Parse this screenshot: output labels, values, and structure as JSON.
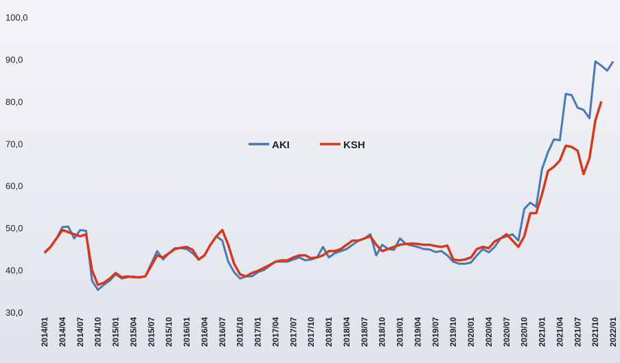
{
  "chart_data": {
    "type": "line",
    "categories": [
      "2014/01",
      null,
      null,
      "2014/04",
      null,
      null,
      "2014/07",
      null,
      null,
      "2014/10",
      null,
      null,
      "2015/01",
      null,
      null,
      "2015/04",
      null,
      null,
      "2015/07",
      null,
      null,
      "2015/10",
      null,
      null,
      "2016/01",
      null,
      null,
      "2016/04",
      null,
      null,
      "2016/07",
      null,
      null,
      "2016/10",
      null,
      null,
      "2017/01",
      null,
      null,
      "2017/04",
      null,
      null,
      "2017/07",
      null,
      null,
      "2017/10",
      null,
      null,
      "2018/01",
      null,
      null,
      "2018/04",
      null,
      null,
      "2018/07",
      null,
      null,
      "2018/10",
      null,
      null,
      "2019/01",
      null,
      null,
      "2019/04",
      null,
      null,
      "2019/07",
      null,
      null,
      "2019/10",
      null,
      null,
      "2020/01",
      null,
      null,
      "2020/04",
      null,
      null,
      "2020/07",
      null,
      null,
      "2020/10",
      null,
      null,
      "2021/01",
      null,
      null,
      "2021/04",
      null,
      null,
      "2021/07",
      null,
      null,
      "2021/10",
      null,
      null,
      "2022/01"
    ],
    "series": [
      {
        "name": "AKI",
        "color": "#4a78b4",
        "values": [
          44,
          45.5,
          47.5,
          50.2,
          50.3,
          47.5,
          49.5,
          49.3,
          37.5,
          35.3,
          36.5,
          37.5,
          39,
          38,
          38.3,
          38.5,
          38.2,
          38.5,
          41.5,
          44.5,
          42.5,
          44,
          45.2,
          45.2,
          45,
          44,
          42.5,
          43.5,
          46,
          48,
          47,
          42,
          39.5,
          38,
          38.5,
          38.5,
          39.5,
          40,
          41,
          42,
          42,
          42,
          42.5,
          43,
          42.3,
          42.5,
          43,
          45.5,
          43,
          44,
          44.5,
          45,
          46,
          47,
          47.5,
          48.5,
          43.5,
          46,
          45,
          44.8,
          47.5,
          46.2,
          45.8,
          45.5,
          45,
          44.9,
          44.3,
          44.5,
          43.5,
          42,
          41.5,
          41.5,
          41.8,
          43.5,
          45,
          44.2,
          45.5,
          47.5,
          48,
          48.5,
          47,
          54.5,
          56,
          55,
          64,
          68,
          71,
          70.8,
          81.8,
          81.5,
          78.5,
          78,
          76,
          89.5,
          88.5,
          87.3,
          89.5
        ]
      },
      {
        "name": "KSH",
        "color": "#d6381c",
        "values": [
          44.2,
          45.5,
          47.5,
          49.5,
          49,
          48.5,
          48,
          48.5,
          40,
          36.5,
          37,
          38,
          39.3,
          38.3,
          38.5,
          38.3,
          38.3,
          38.5,
          41,
          43.5,
          43,
          44,
          45,
          45.3,
          45.5,
          44.8,
          42.5,
          43.5,
          46,
          48,
          49.5,
          46,
          41.5,
          39,
          38.5,
          39.3,
          39.8,
          40.5,
          41.2,
          42,
          42.3,
          42.3,
          43,
          43.5,
          43.5,
          42.8,
          43,
          43.5,
          44.5,
          44.5,
          45,
          46,
          47,
          47,
          47.5,
          48,
          46,
          44.5,
          45,
          45.5,
          46,
          46.2,
          46.3,
          46.2,
          46,
          46,
          45.7,
          45.5,
          45.8,
          42.5,
          42.3,
          42.5,
          43,
          45,
          45.5,
          45.2,
          46.8,
          47.5,
          48.5,
          47,
          45.5,
          48,
          53.5,
          53.5,
          58,
          63.5,
          64.5,
          66,
          69.5,
          69.2,
          68.3,
          62.8,
          66.5,
          75.5,
          80,
          null,
          null
        ]
      }
    ],
    "ylim": [
      30,
      100
    ],
    "yticks": [
      {
        "value": 30,
        "label": "30,0"
      },
      {
        "value": 40,
        "label": "40,0"
      },
      {
        "value": 50,
        "label": "50,0"
      },
      {
        "value": 60,
        "label": "60,0"
      },
      {
        "value": 70,
        "label": "70,0"
      },
      {
        "value": 80,
        "label": "80,0"
      },
      {
        "value": 90,
        "label": "90,0"
      },
      {
        "value": 100,
        "label": "100,0"
      }
    ]
  }
}
